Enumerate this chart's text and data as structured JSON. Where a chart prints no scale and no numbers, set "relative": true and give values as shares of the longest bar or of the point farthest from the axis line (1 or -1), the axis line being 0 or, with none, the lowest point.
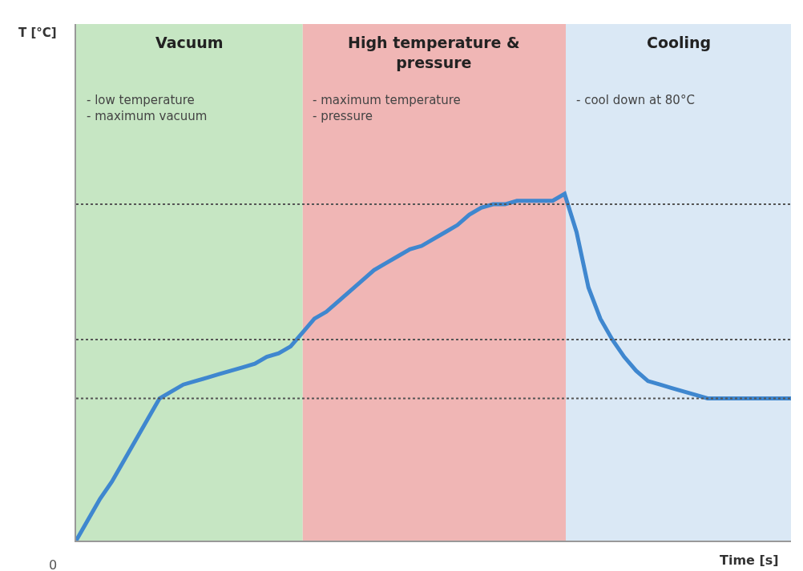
{
  "chart_data": {
    "type": "line",
    "relative": true,
    "xlabel": "Time [s]",
    "categories": [
      null,
      null,
      null,
      null,
      null,
      null,
      null,
      null,
      null,
      null,
      null,
      null,
      null,
      null,
      null,
      null,
      null,
      null,
      null,
      null,
      null,
      null,
      null,
      null,
      null,
      null,
      null,
      null,
      null,
      null,
      null,
      null,
      null,
      null,
      null,
      null,
      null,
      null,
      null,
      null,
      null,
      null,
      null,
      null,
      null,
      null,
      null,
      null,
      null,
      null,
      null,
      null,
      null,
      null,
      null,
      null,
      null,
      null,
      null,
      null,
      null
    ],
    "series": [
      {
        "color": "#3f87cf",
        "values": [
          0,
          0.06,
          0.12,
          0.17,
          0.23,
          0.29,
          0.35,
          0.41,
          0.43,
          0.45,
          0.46,
          0.47,
          0.48,
          0.49,
          0.5,
          0.51,
          0.53,
          0.54,
          0.56,
          0.6,
          0.64,
          0.66,
          0.69,
          0.72,
          0.75,
          0.78,
          0.8,
          0.82,
          0.84,
          0.85,
          0.87,
          0.89,
          0.91,
          0.94,
          0.96,
          0.97,
          0.97,
          0.98,
          0.98,
          0.98,
          0.98,
          1,
          0.89,
          0.73,
          0.64,
          0.58,
          0.53,
          0.49,
          0.46,
          0.45,
          0.44,
          0.43,
          0.42,
          0.41,
          0.41,
          0.41,
          0.41,
          0.41,
          0.41,
          0.41,
          0.41
        ]
      }
    ],
    "ref_lines": [
      {
        "axis": "y",
        "value": 0.97,
        "color": "#555555",
        "line_style": "dotted"
      },
      {
        "axis": "y",
        "value": 0.58,
        "color": "#555555",
        "line_style": "dotted"
      },
      {
        "axis": "y",
        "value": 0.41,
        "color": "#555555",
        "line_style": "dotted"
      }
    ],
    "annotations": [
      "Vacuum",
      "- low temperature\n- maximum vacuum",
      "High temperature &\npressure",
      "- maximum temperature\n- pressure",
      "Cooling",
      "- cool down at 80°C",
      "T [°C]",
      "0"
    ],
    "marker": "none",
    "line_style": "solid"
  }
}
